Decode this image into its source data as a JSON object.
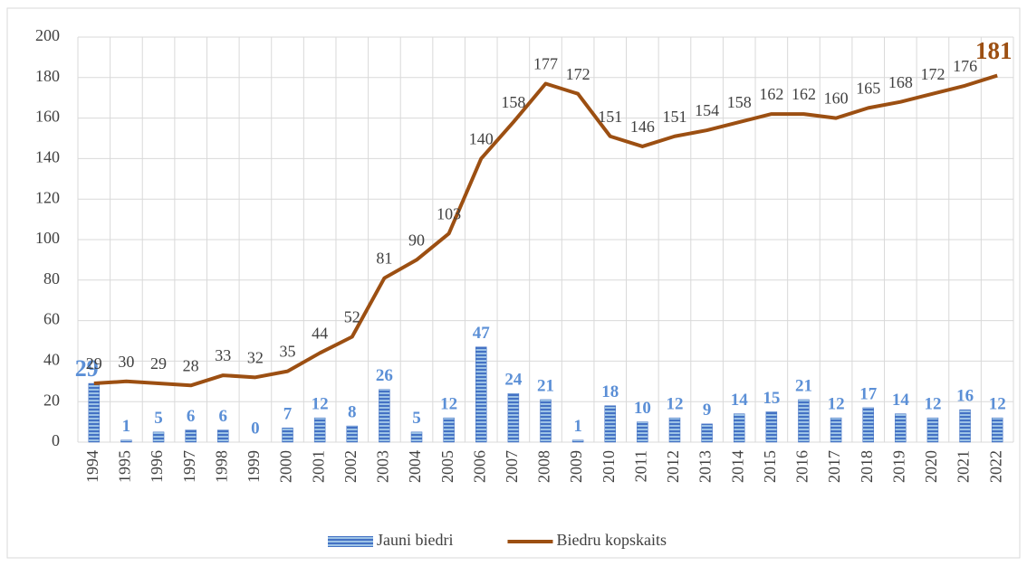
{
  "chart_data": {
    "type": "combo",
    "categories": [
      "1994",
      "1995",
      "1996",
      "1997",
      "1998",
      "1999",
      "2000",
      "2001",
      "2002",
      "2003",
      "2004",
      "2005",
      "2006",
      "2007",
      "2008",
      "2009",
      "2010",
      "2011",
      "2012",
      "2013",
      "2014",
      "2015",
      "2016",
      "2017",
      "2018",
      "2019",
      "2020",
      "2021",
      "2022"
    ],
    "series": [
      {
        "name": "Jauni biedri",
        "type": "bar",
        "color": "#4472c4",
        "label_color": "#5b8fd6",
        "values": [
          29,
          1,
          5,
          6,
          6,
          0,
          7,
          12,
          8,
          26,
          5,
          12,
          47,
          24,
          21,
          1,
          18,
          10,
          12,
          9,
          14,
          15,
          21,
          12,
          17,
          14,
          12,
          16,
          12
        ]
      },
      {
        "name": "Biedru kopskaits",
        "type": "line",
        "color": "#9c4f12",
        "values": [
          29,
          30,
          29,
          28,
          33,
          32,
          35,
          44,
          52,
          81,
          90,
          103,
          140,
          158,
          177,
          172,
          151,
          146,
          151,
          154,
          158,
          162,
          162,
          160,
          165,
          168,
          172,
          176,
          181
        ]
      }
    ],
    "ylim": [
      0,
      200
    ],
    "yticks": [
      0,
      20,
      40,
      60,
      80,
      100,
      120,
      140,
      160,
      180,
      200
    ],
    "grid": true,
    "legend": "bottom"
  }
}
